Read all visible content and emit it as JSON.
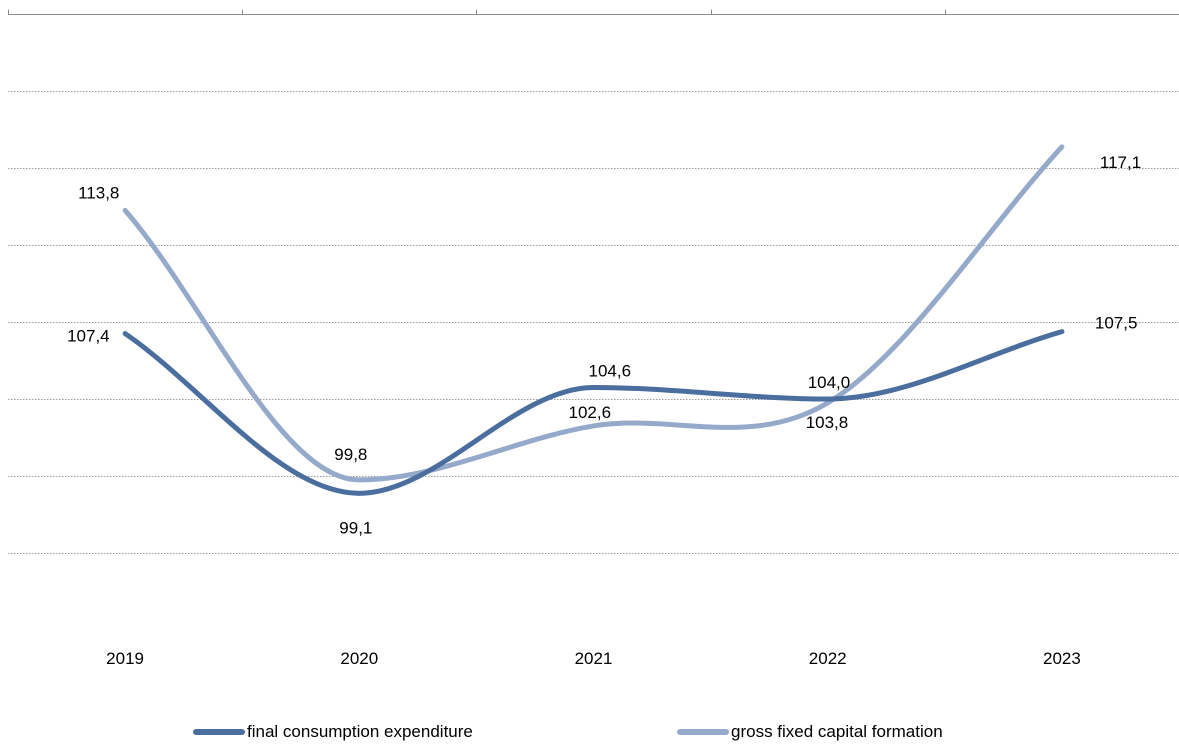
{
  "chart_data": {
    "type": "line",
    "categories": [
      "2019",
      "2020",
      "2021",
      "2022",
      "2023"
    ],
    "ylim": [
      92,
      124
    ],
    "grid": true,
    "legend_position": "bottom",
    "series": [
      {
        "name": "final consumption expenditure",
        "values": [
          107.4,
          99.1,
          104.6,
          104.0,
          107.5
        ],
        "labels": [
          "107,4",
          "99,1",
          "104,6",
          "104,0",
          "107,5"
        ],
        "color": "#4a6e9e"
      },
      {
        "name": "gross fixed capital formation",
        "values": [
          113.8,
          99.8,
          102.6,
          103.8,
          117.1
        ],
        "labels": [
          "113,8",
          "99,8",
          "102,6",
          "103,8",
          "117,1"
        ],
        "color": "#95a9cb"
      }
    ]
  }
}
